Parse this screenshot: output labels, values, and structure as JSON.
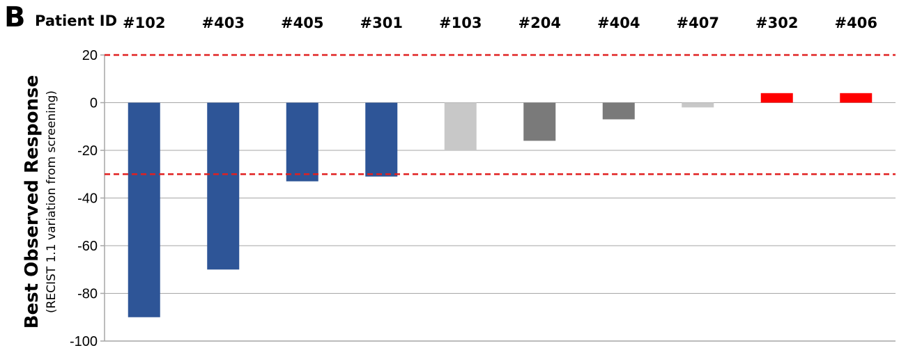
{
  "panel_label": "B",
  "patient_id_label": "Patient ID",
  "chart_data": {
    "type": "bar",
    "categories": [
      "#102",
      "#403",
      "#405",
      "#301",
      "#103",
      "#204",
      "#404",
      "#407",
      "#302",
      "#406"
    ],
    "values": [
      -90,
      -70,
      -33,
      -31,
      -20,
      -16,
      -7,
      -2,
      4,
      4
    ],
    "bar_colors": [
      "#2e5597",
      "#2e5597",
      "#2e5597",
      "#2e5597",
      "#c8c8c8",
      "#7a7a7a",
      "#7a7a7a",
      "#c8c8c8",
      "#ff0000",
      "#ff0000"
    ],
    "ylabel": "Best Observed Response",
    "ylabel_sub": "(RECIST 1.1 variation from screening)",
    "ylim": [
      -100,
      20
    ],
    "yticks": [
      20,
      0,
      -20,
      -40,
      -60,
      -80,
      -100
    ],
    "reference_lines": [
      20,
      -30
    ],
    "reference_line_color": "#e02020",
    "grid": true,
    "category_axis_position": "top"
  }
}
